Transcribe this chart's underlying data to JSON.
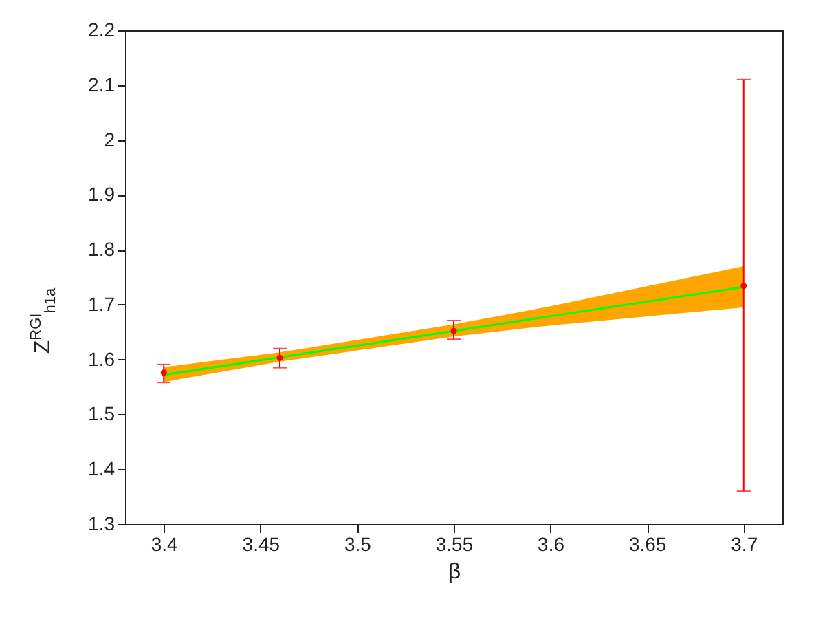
{
  "chart_data": {
    "type": "line",
    "xlabel": "β",
    "ylabel": "Z$^{RGI}$$_{h1a}$",
    "xlim": [
      3.38,
      3.72
    ],
    "xticks": [
      3.4,
      3.45,
      3.5,
      3.55,
      3.6,
      3.65,
      3.7
    ],
    "ylim": [
      1.3,
      2.2
    ],
    "yticks": [
      1.3,
      1.4,
      1.5,
      1.6,
      1.7,
      1.8,
      1.9,
      2,
      2.1,
      2.2
    ],
    "grid": false,
    "series": [
      {
        "color": "#00ff00",
        "x": [
          3.4,
          3.46,
          3.55,
          3.6,
          3.7
        ],
        "values": [
          1.572,
          1.604,
          1.652,
          1.679,
          1.732
        ],
        "lower": [
          1.559,
          1.596,
          1.642,
          1.662,
          1.695
        ],
        "upper": [
          1.586,
          1.613,
          1.664,
          1.697,
          1.77
        ],
        "marker": "none"
      },
      {
        "type": "scatter",
        "color": "#ff0000",
        "x": [
          3.4,
          3.46,
          3.55,
          3.7
        ],
        "values": [
          1.576,
          1.603,
          1.652,
          1.734
        ],
        "errors": [
          [
            1.558,
            1.591
          ],
          [
            1.585,
            1.62
          ],
          [
            1.637,
            1.671
          ],
          [
            1.36,
            2.11
          ]
        ],
        "marker": "circle"
      }
    ]
  }
}
